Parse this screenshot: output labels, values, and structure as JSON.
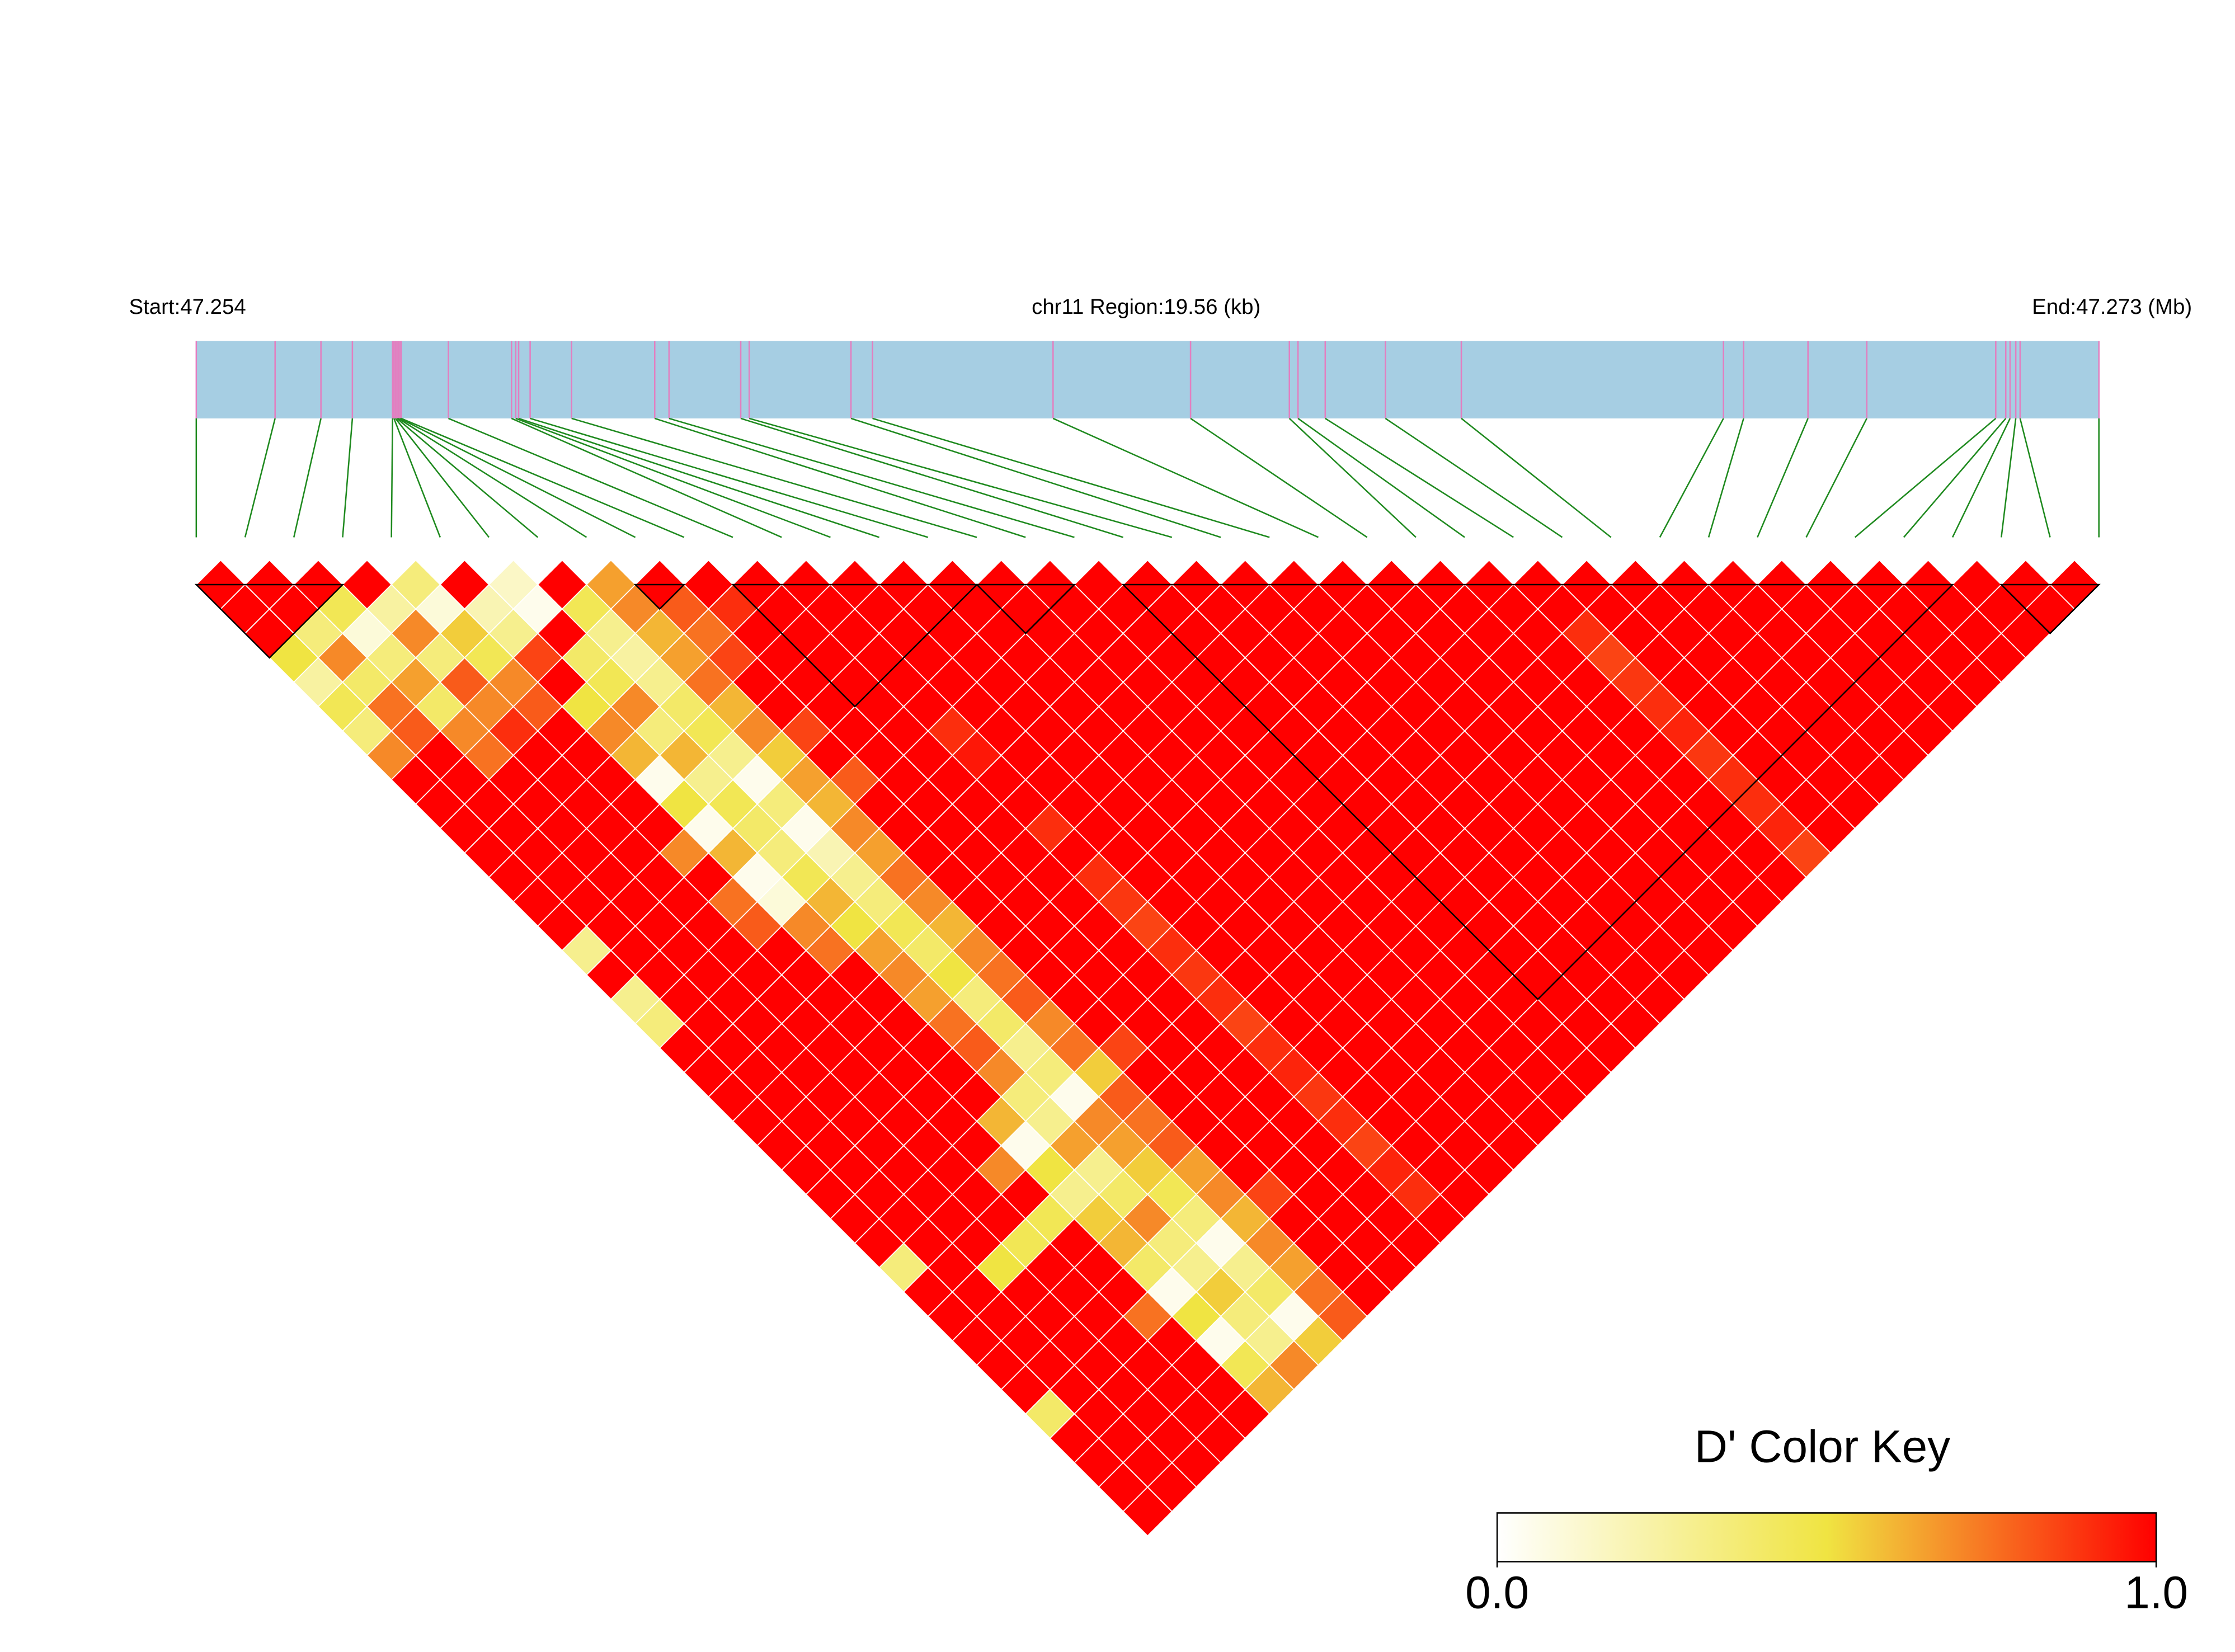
{
  "chart_data": {
    "type": "ld_heatmap",
    "start_label": "Start:47.254",
    "title": "chr11 Region:19.56 (kb)",
    "end_label": "End:47.273 (Mb)",
    "positions": [
      47.254,
      47.254787,
      47.255245,
      47.255559,
      47.25596,
      47.255974,
      47.255989,
      47.256003,
      47.256017,
      47.256032,
      47.256046,
      47.256518,
      47.257148,
      47.25719,
      47.257219,
      47.257334,
      47.257748,
      47.258578,
      47.258721,
      47.259437,
      47.259522,
      47.260538,
      47.260753,
      47.262556,
      47.263929,
      47.264916,
      47.265002,
      47.265274,
      47.265875,
      47.266633,
      47.269251,
      47.269452,
      47.270095,
      47.270682,
      47.27197,
      47.27207,
      47.272113,
      47.27217,
      47.272213,
      47.273
    ],
    "dprime": [
      [
        1,
        1,
        1,
        0.5,
        0.25,
        0.45,
        0.35,
        0.7,
        1,
        1,
        1,
        1,
        1,
        1,
        1,
        0.3,
        1,
        0.3,
        0.35,
        1,
        1,
        1,
        1,
        1,
        1,
        1,
        1,
        1,
        0.35,
        1,
        1,
        1,
        1,
        1,
        0.4,
        1,
        1,
        1,
        1
      ],
      [
        1,
        1,
        0.35,
        0.7,
        0.4,
        0.75,
        0.8,
        1,
        1,
        1,
        1,
        1,
        1,
        1,
        1,
        1,
        1,
        1,
        1,
        1,
        1,
        1,
        1,
        1,
        1,
        1,
        1,
        1,
        1,
        1,
        1,
        1,
        1,
        1,
        1,
        1,
        1,
        1
      ],
      [
        1,
        0.45,
        0.1,
        0.35,
        0.65,
        0.4,
        0.7,
        0.75,
        1,
        1,
        1,
        1,
        1,
        1,
        1,
        1,
        1,
        1,
        1,
        1,
        1,
        1,
        1,
        1,
        1,
        1,
        1,
        1,
        0.5,
        1,
        1,
        1,
        1,
        1,
        1,
        1,
        1
      ],
      [
        1,
        0.25,
        0.7,
        0.35,
        0.8,
        0.7,
        0.9,
        1,
        1,
        1,
        1,
        1,
        1,
        1,
        1,
        1,
        1,
        1,
        1,
        1,
        1,
        1,
        1,
        1,
        1,
        1,
        1,
        0.45,
        1,
        1,
        1,
        1,
        1,
        1,
        1,
        1
      ],
      [
        0.35,
        0.1,
        0.55,
        0.45,
        0.7,
        0.8,
        1,
        1,
        1,
        1,
        1,
        0.7,
        1,
        0.75,
        0.8,
        1,
        1,
        1,
        1,
        1,
        1,
        1,
        1,
        1,
        0.7,
        1,
        0.45,
        1,
        1,
        1,
        0.75,
        1,
        1,
        1,
        1
      ],
      [
        1,
        0.2,
        0.3,
        0.85,
        1,
        0.5,
        0.7,
        0.6,
        0.05,
        0.5,
        0.05,
        0.6,
        0.05,
        0.1,
        0.7,
        0.75,
        1,
        1,
        1,
        1,
        1,
        1,
        0.6,
        0.05,
        0.5,
        0.3,
        0.55,
        0.6,
        0.4,
        0.05,
        0.5,
        0.05,
        0.45,
        0.6
      ],
      [
        0.15,
        0.05,
        1,
        0.4,
        0.45,
        0.7,
        0.35,
        0.6,
        0.3,
        0.45,
        0.4,
        0.35,
        0.45,
        0.6,
        0.5,
        0.65,
        0.7,
        0.65,
        0.75,
        0.8,
        0.7,
        0.35,
        0.3,
        0.65,
        0.3,
        0.4,
        0.7,
        0.35,
        0.3,
        0.55,
        0.35,
        0.3,
        0.7
      ],
      [
        1,
        0.45,
        0.3,
        0.25,
        0.3,
        0.4,
        0.45,
        0.3,
        0.05,
        0.35,
        0.05,
        0.2,
        0.3,
        0.35,
        0.45,
        0.4,
        0.5,
        0.35,
        0.4,
        0.3,
        0.35,
        0.05,
        0.7,
        0.65,
        0.55,
        0.45,
        0.35,
        0.05,
        0.3,
        0.4,
        0.05,
        0.55
      ],
      [
        0.65,
        0.7,
        0.6,
        0.65,
        0.75,
        0.6,
        0.7,
        0.55,
        0.65,
        0.6,
        0.7,
        0.65,
        0.75,
        0.7,
        0.6,
        0.7,
        0.75,
        0.8,
        0.7,
        0.75,
        0.55,
        0.8,
        0.75,
        0.8,
        0.65,
        0.7,
        0.6,
        0.7,
        0.65,
        0.75,
        0.8
      ],
      [
        1,
        0.8,
        0.75,
        0.85,
        1,
        1,
        0.85,
        1,
        0.8,
        1,
        1,
        1,
        1,
        1,
        1,
        1,
        1,
        1,
        1,
        0.85,
        1,
        1,
        1,
        1,
        1,
        0.85,
        1,
        1,
        1,
        1
      ],
      [
        1,
        0.9,
        1,
        1,
        1,
        1,
        1,
        1,
        1,
        1,
        1,
        1,
        1,
        1,
        1,
        1,
        1,
        1,
        1,
        1,
        1,
        1,
        1,
        1,
        1,
        1,
        1,
        1,
        1
      ],
      [
        1,
        1,
        1,
        1,
        1,
        1,
        1,
        1,
        1,
        1,
        1,
        1,
        1,
        1,
        1,
        1,
        1,
        1,
        1,
        1,
        1,
        1,
        1,
        1,
        1,
        1,
        1,
        1
      ],
      [
        1,
        1,
        1,
        1,
        1,
        1,
        0.9,
        0.95,
        1,
        1,
        0.9,
        1,
        0.9,
        0.88,
        0.85,
        0.9,
        0.88,
        0.9,
        0.85,
        0.9,
        0.92,
        0.88,
        0.9,
        0.85,
        0.92,
        0.9,
        1
      ],
      [
        1,
        1,
        1,
        1,
        1,
        1,
        1,
        1,
        1,
        1,
        1,
        1,
        1,
        1,
        1,
        1,
        1,
        1,
        1,
        1,
        1,
        1,
        1,
        1,
        1,
        1
      ],
      [
        1,
        1,
        1,
        1,
        1,
        1,
        1,
        1,
        1,
        1,
        1,
        1,
        1,
        1,
        1,
        1,
        1,
        1,
        1,
        1,
        1,
        1,
        1,
        1,
        1
      ],
      [
        1,
        1,
        1,
        1,
        1,
        1,
        1,
        1,
        1,
        1,
        1,
        1,
        1,
        1,
        1,
        1,
        1,
        1,
        1,
        1,
        1,
        1,
        1,
        1
      ],
      [
        1,
        1,
        1,
        1,
        1,
        1,
        1,
        1,
        1,
        1,
        1,
        1,
        1,
        1,
        1,
        1,
        1,
        1,
        1,
        1,
        1,
        1,
        1
      ],
      [
        1,
        1,
        1,
        1,
        1,
        1,
        1,
        1,
        1,
        1,
        1,
        1,
        1,
        1,
        1,
        1,
        1,
        1,
        1,
        1,
        1,
        1
      ],
      [
        1,
        1,
        1,
        1,
        1,
        1,
        1,
        1,
        1,
        1,
        1,
        1,
        1,
        1,
        1,
        1,
        1,
        1,
        1,
        1,
        1
      ],
      [
        1,
        1,
        1,
        1,
        1,
        1,
        1,
        1,
        1,
        1,
        1,
        1,
        1,
        1,
        1,
        1,
        1,
        1,
        1,
        1
      ],
      [
        1,
        1,
        1,
        1,
        1,
        1,
        1,
        1,
        1,
        1,
        1,
        1,
        1,
        1,
        1,
        1,
        1,
        1,
        1
      ],
      [
        1,
        1,
        1,
        1,
        1,
        1,
        1,
        1,
        1,
        1,
        1,
        1,
        1,
        1,
        1,
        1,
        1,
        1
      ],
      [
        1,
        1,
        1,
        1,
        1,
        1,
        1,
        1,
        1,
        1,
        1,
        1,
        1,
        1,
        1,
        1,
        1
      ],
      [
        1,
        1,
        1,
        1,
        1,
        1,
        1,
        1,
        1,
        1,
        1,
        1,
        1,
        1,
        1,
        1
      ],
      [
        1,
        1,
        1,
        1,
        1,
        1,
        1,
        1,
        1,
        1,
        1,
        1,
        1,
        1,
        1
      ],
      [
        1,
        1,
        1,
        1,
        1,
        1,
        1,
        1,
        1,
        1,
        1,
        1,
        1,
        1
      ],
      [
        1,
        1,
        1,
        1,
        1,
        1,
        1,
        1,
        1,
        1,
        1,
        1,
        1
      ],
      [
        1,
        1,
        0.9,
        0.85,
        0.88,
        0.9,
        0.92,
        0.88,
        0.9,
        0.9,
        0.92,
        0.85
      ],
      [
        1,
        1,
        1,
        1,
        1,
        1,
        1,
        1,
        1,
        1,
        1
      ],
      [
        1,
        1,
        1,
        1,
        1,
        1,
        1,
        1,
        1,
        1
      ],
      [
        1,
        1,
        1,
        1,
        1,
        1,
        1,
        1,
        1
      ],
      [
        1,
        1,
        1,
        1,
        1,
        1,
        1,
        1
      ],
      [
        1,
        1,
        1,
        1,
        1,
        1,
        1
      ],
      [
        1,
        1,
        1,
        1,
        1,
        1
      ],
      [
        1,
        1,
        1,
        1,
        1
      ],
      [
        1,
        1,
        1,
        1
      ],
      [
        1,
        1,
        1
      ],
      [
        1,
        1
      ],
      [
        1
      ]
    ],
    "blocks": [
      [
        0,
        3
      ],
      [
        9,
        10
      ],
      [
        11,
        16
      ],
      [
        16,
        18
      ],
      [
        19,
        36
      ],
      [
        37,
        39
      ]
    ],
    "key_title": "D' Color Key",
    "key_colors": [
      "#ffffff",
      "#f0e442",
      "#ff0000"
    ],
    "key_lim": [
      0,
      1
    ],
    "key_ticks": [
      {
        "value": 0,
        "label": "0.0"
      },
      {
        "value": 1,
        "label": "1.0"
      }
    ],
    "region_color": "#a6cee3",
    "marker_color": "#e27fc0",
    "connector_color": "#1f8a1f"
  }
}
